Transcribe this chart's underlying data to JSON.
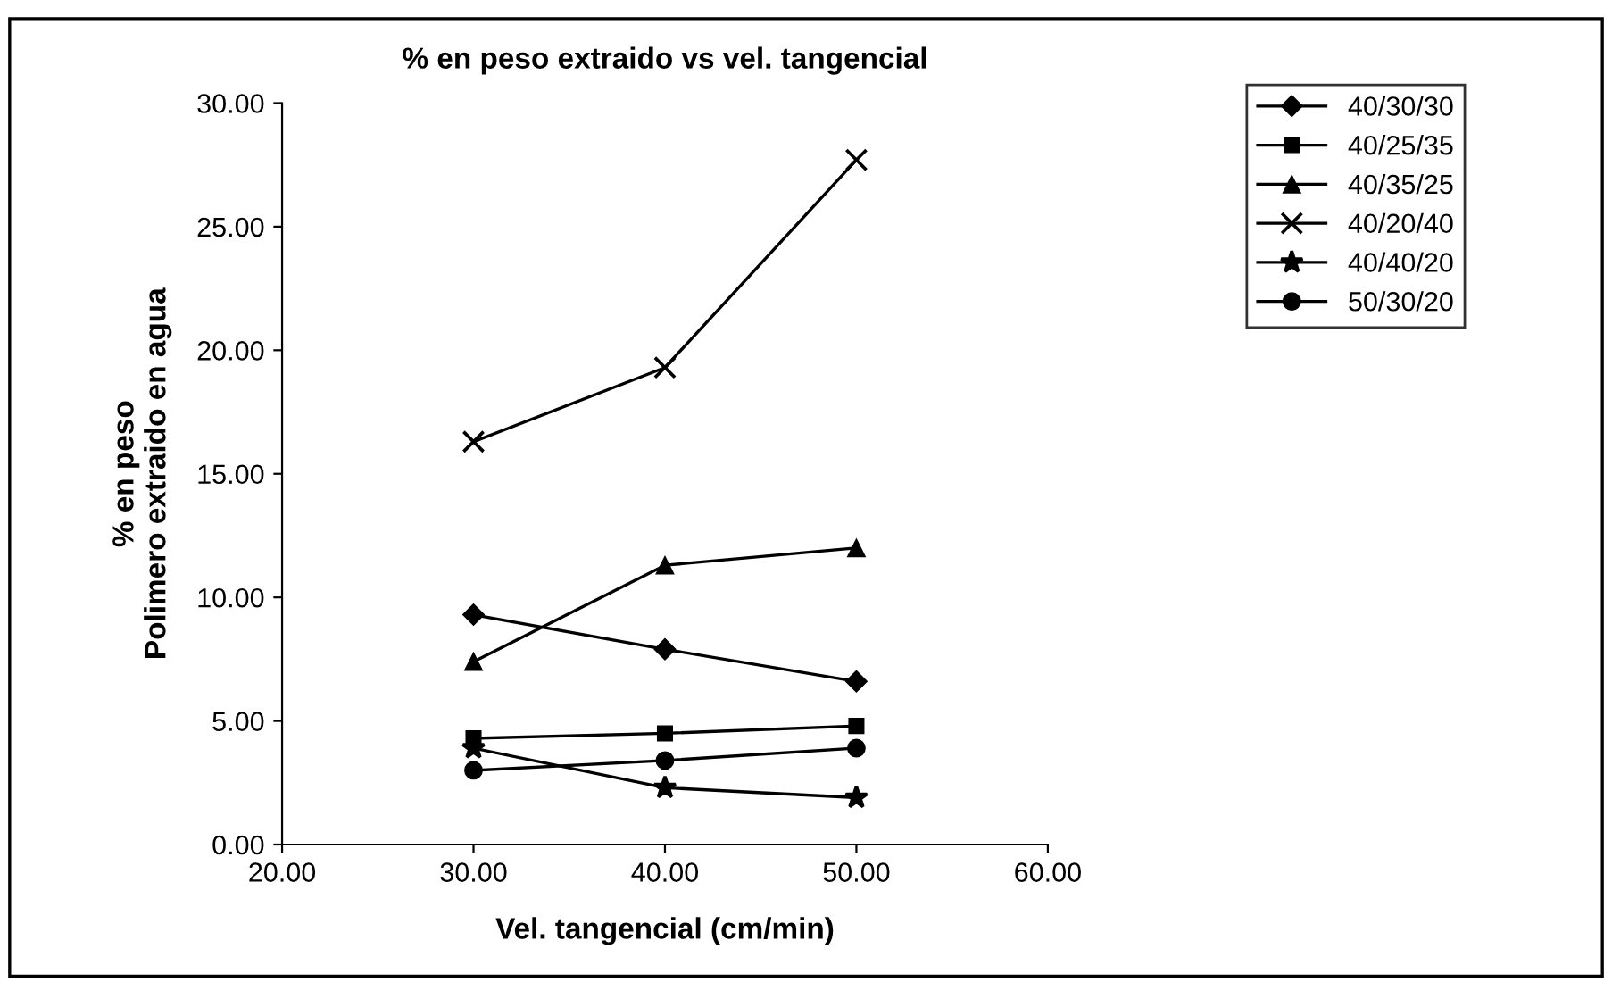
{
  "chart_data": {
    "type": "line",
    "title": "% en peso extraido vs vel. tangencial",
    "xlabel": "Vel. tangencial (cm/min)",
    "ylabel": "% en peso\nPolimero extraido en agua",
    "x": [
      30,
      40,
      50
    ],
    "series": [
      {
        "name": "40/30/30",
        "color": "#000000",
        "marker": "diamond",
        "values": [
          9.3,
          7.9,
          6.6
        ]
      },
      {
        "name": "40/25/35",
        "color": "#000000",
        "marker": "square",
        "values": [
          4.3,
          4.5,
          4.8
        ]
      },
      {
        "name": "40/35/25",
        "color": "#000000",
        "marker": "triangle",
        "values": [
          7.4,
          11.3,
          12.0
        ]
      },
      {
        "name": "40/20/40",
        "color": "#000000",
        "marker": "cross",
        "values": [
          16.3,
          19.3,
          27.7
        ]
      },
      {
        "name": "40/40/20",
        "color": "#000000",
        "marker": "star",
        "values": [
          3.9,
          2.3,
          1.9
        ]
      },
      {
        "name": "50/30/20",
        "color": "#000000",
        "marker": "circle",
        "values": [
          3.0,
          3.4,
          3.9
        ]
      }
    ],
    "xlim": [
      20,
      60
    ],
    "xticks": [
      {
        "value": 20,
        "label": "20.00"
      },
      {
        "value": 30,
        "label": "30.00"
      },
      {
        "value": 40,
        "label": "40.00"
      },
      {
        "value": 50,
        "label": "50.00"
      },
      {
        "value": 60,
        "label": "60.00"
      }
    ],
    "ylim": [
      0,
      30
    ],
    "yticks": [
      {
        "value": 0,
        "label": "0.00"
      },
      {
        "value": 5,
        "label": "5.00"
      },
      {
        "value": 10,
        "label": "10.00"
      },
      {
        "value": 15,
        "label": "15.00"
      },
      {
        "value": 20,
        "label": "20.00"
      },
      {
        "value": 25,
        "label": "25.00"
      },
      {
        "value": 30,
        "label": "30.00"
      }
    ],
    "grid": false,
    "legend": "right",
    "line_style": "solid"
  }
}
